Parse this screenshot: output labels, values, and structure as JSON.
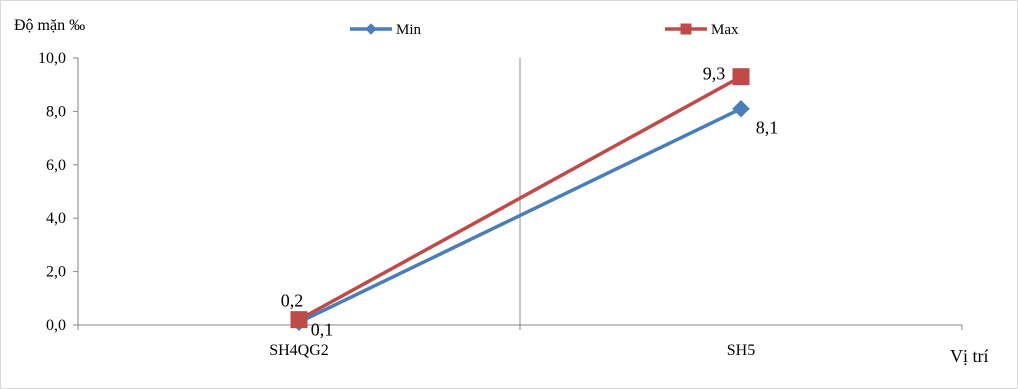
{
  "chart_data": {
    "type": "line",
    "title": "",
    "ylabel": "Độ mặn ‰",
    "xlabel": "Vị trí",
    "categories": [
      "SH4QG2",
      "SH5"
    ],
    "ylim": [
      0,
      10
    ],
    "yticks": [
      "0,0",
      "2,0",
      "4,0",
      "6,0",
      "8,0",
      "10,0"
    ],
    "ytick_values": [
      0,
      2,
      4,
      6,
      8,
      10
    ],
    "grid": "vertical separator between categories",
    "legend_position": "top",
    "series": [
      {
        "name": "Min",
        "values": [
          0.1,
          8.1
        ],
        "labels": [
          "0,1",
          "8,1"
        ],
        "color": "#4a7ebb",
        "marker": "diamond"
      },
      {
        "name": "Max",
        "values": [
          0.2,
          9.3
        ],
        "labels": [
          "0,2",
          "9,3"
        ],
        "color": "#be4b48",
        "marker": "square"
      }
    ]
  }
}
